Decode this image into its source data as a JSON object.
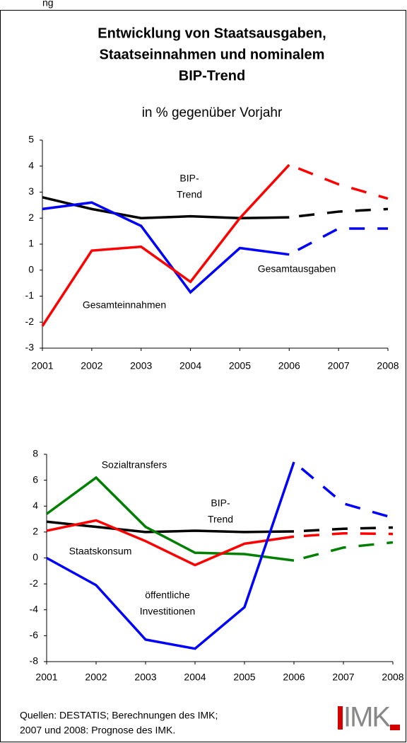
{
  "header_fragment": "ng",
  "chart_data": [
    {
      "type": "line",
      "title": [
        "Entwicklung von Staatsausgaben,",
        "Staatseinnahmen und nominalem",
        "BIP-Trend"
      ],
      "subtitle": "in % gegenüber Vorjahr",
      "x": [
        2001,
        2002,
        2003,
        2004,
        2005,
        2006,
        2007,
        2008
      ],
      "xlim": [
        2001,
        2008
      ],
      "xticks": [
        2001,
        2002,
        2003,
        2004,
        2005,
        2006,
        2007,
        2008
      ],
      "ylim": [
        -3,
        5
      ],
      "yticks": [
        -3,
        -2,
        -1,
        0,
        1,
        2,
        3,
        4,
        5
      ],
      "forecast_start": 2006,
      "series": [
        {
          "name": [
            "BIP-",
            "Trend"
          ],
          "color": "#000000",
          "values": [
            2.8,
            2.35,
            2.0,
            2.07,
            2.0,
            2.03,
            2.25,
            2.35
          ]
        },
        {
          "name": [
            "Gesamtausgaben"
          ],
          "color": "#0000ff",
          "values": [
            2.35,
            2.6,
            1.7,
            -0.85,
            0.85,
            0.6,
            1.6,
            1.6
          ]
        },
        {
          "name": [
            "Gesamteinnahmen"
          ],
          "color": "#ff0000",
          "values": [
            -2.15,
            0.75,
            0.9,
            -0.45,
            2.0,
            4.05,
            3.3,
            2.75
          ]
        }
      ]
    },
    {
      "type": "line",
      "x": [
        2001,
        2002,
        2003,
        2004,
        2005,
        2006,
        2007,
        2008
      ],
      "xlim": [
        2001,
        2008
      ],
      "xticks": [
        2001,
        2002,
        2003,
        2004,
        2005,
        2006,
        2007,
        2008
      ],
      "ylim": [
        -8,
        8
      ],
      "yticks": [
        -8,
        -6,
        -4,
        -2,
        0,
        2,
        4,
        6,
        8
      ],
      "forecast_start": 2006,
      "series": [
        {
          "name": [
            "BIP-",
            "Trend"
          ],
          "color": "#000000",
          "values": [
            2.8,
            2.4,
            2.0,
            2.1,
            2.0,
            2.05,
            2.25,
            2.35
          ]
        },
        {
          "name": [
            "Sozialtransfers"
          ],
          "color": "#008000",
          "values": [
            3.4,
            6.2,
            2.4,
            0.4,
            0.3,
            -0.2,
            0.8,
            1.2
          ]
        },
        {
          "name": [
            "Staatskonsum"
          ],
          "color": "#ff0000",
          "values": [
            2.1,
            2.9,
            1.3,
            -0.55,
            1.1,
            1.65,
            1.9,
            1.85
          ]
        },
        {
          "name": [
            "öffentliche",
            "Investitionen"
          ],
          "color": "#0000ff",
          "values": [
            0.0,
            -2.1,
            -6.3,
            -7.0,
            -3.8,
            7.4,
            4.2,
            3.1
          ]
        }
      ]
    }
  ],
  "source": [
    "Quellen: DESTATIS; Berechnungen des IMK;",
    "2007 und 2008: Prognose des IMK."
  ],
  "logo": "IMK"
}
